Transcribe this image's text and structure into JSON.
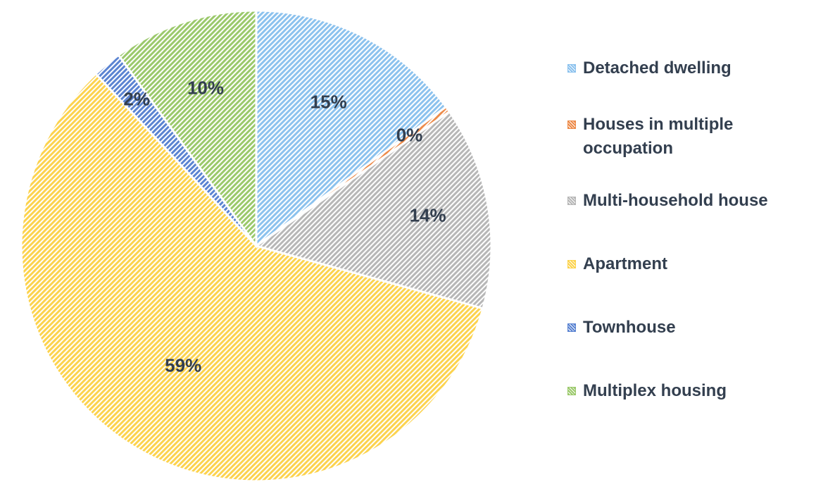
{
  "chart_data": {
    "type": "pie",
    "title": "",
    "categories": [
      "Detached dwelling",
      "Houses in multiple occupation",
      "Multi-household house",
      "Apartment",
      "Townhouse",
      "Multiplex housing"
    ],
    "values": [
      15,
      0.4,
      14,
      59,
      2,
      10
    ],
    "data_labels": [
      "15%",
      "0%",
      "14%",
      "59%",
      "2%",
      "10%"
    ],
    "colors": [
      "#8cc2ee",
      "#ed8b4a",
      "#b7b7b7",
      "#fcd34e",
      "#5b84d2",
      "#9bc96b"
    ],
    "fill_pattern": "diagonal-hatch",
    "legend_position": "right"
  }
}
